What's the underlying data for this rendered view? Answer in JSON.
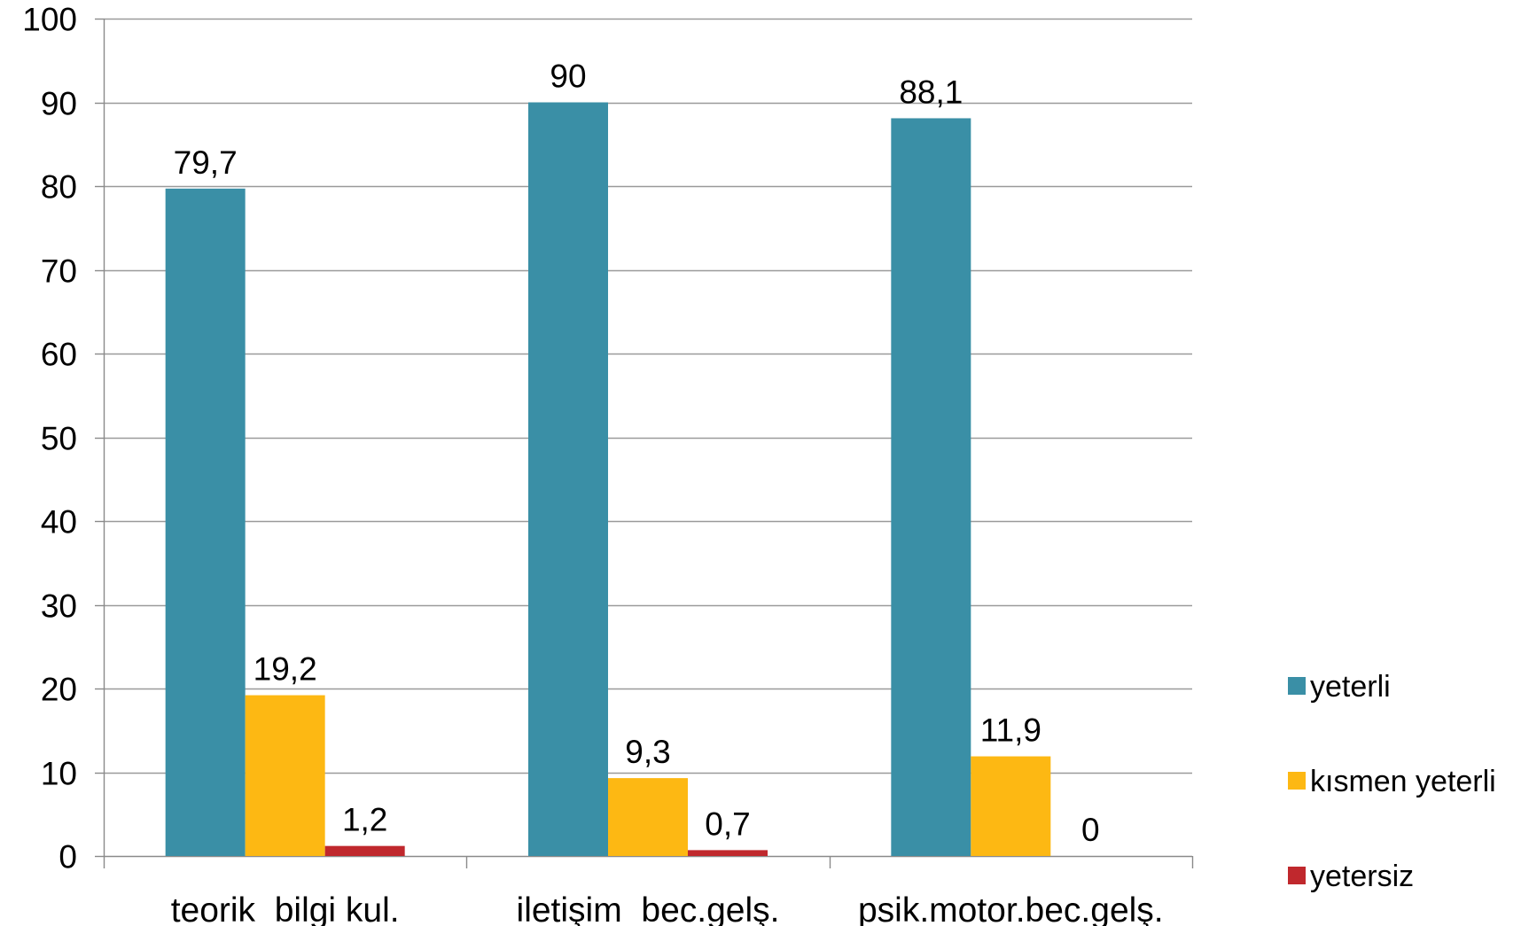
{
  "chart_data": {
    "type": "bar",
    "title": "",
    "xlabel": "",
    "ylabel": "",
    "categories": [
      "teorik  bilgi kul.",
      "iletişim  bec.gelş.",
      "psik.motor.bec.gelş."
    ],
    "series": [
      {
        "name": "yeterli",
        "values": [
          79.7,
          90,
          88.1
        ],
        "labels": [
          "79,7",
          "90",
          "88,1"
        ],
        "color": "#3a8fa6"
      },
      {
        "name": "kısmen yeterli",
        "values": [
          19.2,
          9.3,
          11.9
        ],
        "labels": [
          "19,2",
          "9,3",
          "11,9"
        ],
        "color": "#fdb813"
      },
      {
        "name": "yetersiz",
        "values": [
          1.2,
          0.7,
          0
        ],
        "labels": [
          "1,2",
          "0,7",
          "0"
        ],
        "color": "#c0282d"
      }
    ],
    "ylim": [
      0,
      100
    ],
    "yticks": [
      0,
      10,
      20,
      30,
      40,
      50,
      60,
      70,
      80,
      90,
      100
    ],
    "grid": true,
    "gridColor": "#9a9a9a",
    "legend": "right"
  }
}
